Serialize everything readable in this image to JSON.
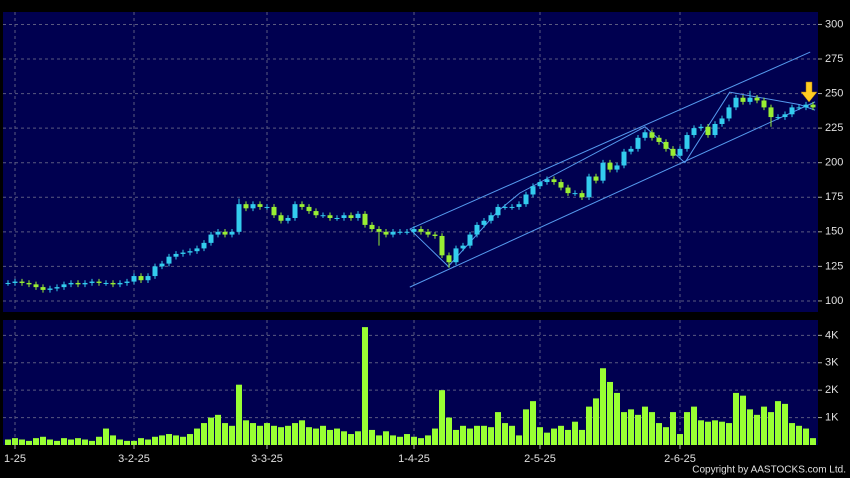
{
  "chart_data": [
    {
      "type": "candlestick",
      "up_color": "#33ccee",
      "down_color": "#99ee33",
      "ylim": [
        92,
        309
      ],
      "yticks": [
        100,
        125,
        150,
        175,
        200,
        225,
        250,
        275,
        300
      ],
      "grid": true,
      "open": [
        113,
        113,
        114,
        113,
        112,
        110,
        108,
        109,
        110,
        112,
        113,
        112,
        113,
        114,
        113,
        113,
        112,
        113,
        114,
        118,
        115,
        118,
        125,
        127,
        132,
        134,
        135,
        136,
        138,
        142,
        148,
        150,
        148,
        150,
        170,
        167,
        170,
        168,
        168,
        162,
        158,
        160,
        170,
        168,
        165,
        162,
        162,
        160,
        160,
        162,
        160,
        163,
        155,
        152,
        150,
        148,
        150,
        150,
        150,
        152,
        150,
        148,
        147,
        133,
        128,
        138,
        140,
        148,
        155,
        158,
        162,
        168,
        168,
        168,
        170,
        177,
        183,
        186,
        188,
        186,
        182,
        178,
        178,
        175,
        190,
        187,
        200,
        195,
        198,
        208,
        210,
        218,
        222,
        218,
        215,
        210,
        205,
        210,
        220,
        225,
        226,
        220,
        228,
        232,
        240,
        247,
        244,
        247,
        245,
        240,
        233,
        233,
        235,
        240,
        240,
        242
      ],
      "high": [
        115,
        116,
        116,
        115,
        114,
        112,
        111,
        112,
        114,
        115,
        115,
        115,
        116,
        116,
        115,
        115,
        115,
        116,
        120,
        120,
        120,
        127,
        129,
        134,
        136,
        137,
        138,
        140,
        144,
        150,
        152,
        152,
        152,
        174,
        172,
        172,
        172,
        170,
        170,
        164,
        162,
        172,
        172,
        170,
        167,
        164,
        164,
        162,
        164,
        164,
        165,
        165,
        157,
        154,
        152,
        152,
        152,
        152,
        154,
        154,
        152,
        150,
        149,
        135,
        140,
        142,
        150,
        157,
        160,
        164,
        170,
        170,
        170,
        172,
        179,
        185,
        188,
        190,
        190,
        188,
        184,
        180,
        180,
        192,
        192,
        202,
        202,
        200,
        210,
        212,
        220,
        224,
        224,
        220,
        217,
        212,
        212,
        222,
        227,
        228,
        228,
        230,
        234,
        242,
        249,
        249,
        252,
        249,
        247,
        242,
        235,
        237,
        242,
        242,
        244,
        244
      ],
      "low": [
        111,
        111,
        111,
        110,
        108,
        106,
        106,
        107,
        108,
        110,
        110,
        110,
        111,
        111,
        111,
        110,
        110,
        111,
        112,
        113,
        113,
        116,
        123,
        125,
        130,
        132,
        133,
        134,
        136,
        140,
        146,
        146,
        146,
        148,
        165,
        165,
        166,
        166,
        160,
        156,
        156,
        158,
        166,
        163,
        160,
        160,
        158,
        158,
        158,
        158,
        158,
        153,
        150,
        140,
        146,
        146,
        148,
        148,
        148,
        148,
        146,
        145,
        131,
        124,
        126,
        136,
        138,
        146,
        153,
        156,
        160,
        166,
        166,
        166,
        168,
        175,
        181,
        184,
        184,
        180,
        176,
        176,
        173,
        173,
        185,
        185,
        193,
        193,
        196,
        206,
        208,
        216,
        216,
        213,
        208,
        203,
        203,
        208,
        218,
        223,
        218,
        218,
        226,
        230,
        238,
        242,
        242,
        243,
        238,
        226,
        231,
        231,
        233,
        238,
        238,
        238
      ],
      "close": [
        113,
        114,
        113,
        112,
        110,
        108,
        109,
        110,
        112,
        113,
        112,
        113,
        114,
        113,
        113,
        112,
        113,
        114,
        118,
        115,
        118,
        125,
        127,
        132,
        134,
        135,
        136,
        138,
        142,
        148,
        150,
        148,
        150,
        170,
        167,
        170,
        168,
        168,
        162,
        158,
        160,
        170,
        168,
        165,
        162,
        162,
        160,
        160,
        162,
        160,
        163,
        155,
        152,
        150,
        148,
        150,
        150,
        150,
        152,
        150,
        148,
        147,
        133,
        128,
        138,
        140,
        148,
        155,
        158,
        162,
        168,
        168,
        168,
        170,
        177,
        183,
        186,
        188,
        186,
        182,
        178,
        178,
        175,
        190,
        187,
        200,
        195,
        198,
        208,
        210,
        218,
        222,
        218,
        215,
        210,
        205,
        210,
        220,
        225,
        226,
        220,
        228,
        232,
        240,
        247,
        244,
        247,
        245,
        240,
        233,
        233,
        235,
        240,
        240,
        242,
        240
      ],
      "lines": [
        {
          "color": "#5599ee",
          "x": [
            57.4,
            114.6
          ],
          "y": [
            152,
            280
          ]
        },
        {
          "color": "#5599ee",
          "x": [
            57.4,
            115.3
          ],
          "y": [
            110,
            244
          ]
        },
        {
          "color": "#5599ee",
          "x": [
            57.4,
            62.9,
            70,
            73.1,
            91,
            96.7,
            103.1,
            113.1,
            115.3
          ],
          "y": [
            152,
            125,
            165,
            178,
            226,
            200,
            251,
            242,
            238
          ]
        }
      ]
    },
    {
      "type": "bar",
      "color": "#99ff33",
      "ylim": [
        0,
        4560
      ],
      "yticks": [
        {
          "value": 1000,
          "label": "1K"
        },
        {
          "value": 2000,
          "label": "2K"
        },
        {
          "value": 3000,
          "label": "3K"
        },
        {
          "value": 4000,
          "label": "4K"
        }
      ],
      "categories": [
        null,
        "1-25",
        null,
        null,
        null,
        null,
        null,
        null,
        null,
        null,
        null,
        null,
        null,
        null,
        null,
        null,
        null,
        null,
        "3-2-25",
        null,
        null,
        null,
        null,
        null,
        null,
        null,
        null,
        null,
        null,
        null,
        null,
        null,
        null,
        null,
        null,
        null,
        null,
        "3-3-25",
        null,
        null,
        null,
        null,
        null,
        null,
        null,
        null,
        null,
        null,
        null,
        null,
        null,
        null,
        null,
        null,
        null,
        null,
        null,
        null,
        "1-4-25",
        null,
        null,
        null,
        null,
        null,
        null,
        null,
        null,
        null,
        null,
        null,
        null,
        null,
        null,
        null,
        null,
        null,
        "2-5-25",
        null,
        null,
        null,
        null,
        null,
        null,
        null,
        null,
        null,
        null,
        null,
        null,
        null,
        null,
        null,
        null,
        null,
        null,
        null,
        "2-6-25",
        null,
        null,
        null,
        null,
        null,
        null,
        null,
        null,
        null,
        null,
        null,
        null,
        null,
        null,
        null,
        null,
        null,
        null,
        null
      ],
      "values": [
        200,
        250,
        200,
        150,
        250,
        300,
        200,
        150,
        250,
        200,
        250,
        200,
        150,
        300,
        600,
        350,
        200,
        150,
        150,
        250,
        200,
        300,
        350,
        400,
        350,
        300,
        400,
        600,
        800,
        1000,
        1100,
        800,
        700,
        2200,
        900,
        800,
        700,
        800,
        700,
        650,
        700,
        800,
        900,
        650,
        600,
        700,
        550,
        600,
        500,
        400,
        500,
        4300,
        550,
        350,
        500,
        350,
        300,
        400,
        300,
        250,
        350,
        600,
        2000,
        1000,
        550,
        700,
        600,
        700,
        700,
        650,
        1200,
        800,
        700,
        350,
        1300,
        1600,
        650,
        450,
        600,
        700,
        550,
        850,
        550,
        1400,
        1700,
        2800,
        2300,
        1900,
        1200,
        1300,
        1100,
        1400,
        1200,
        800,
        650,
        1200,
        400,
        1200,
        1400,
        900,
        850,
        900,
        850,
        800,
        1900,
        1800,
        1300,
        1100,
        1400,
        1200,
        1600,
        1500,
        800,
        700,
        600,
        250
      ]
    },
    {
      "footer": "Copyright by AASTOCKS.com Ltd."
    }
  ]
}
